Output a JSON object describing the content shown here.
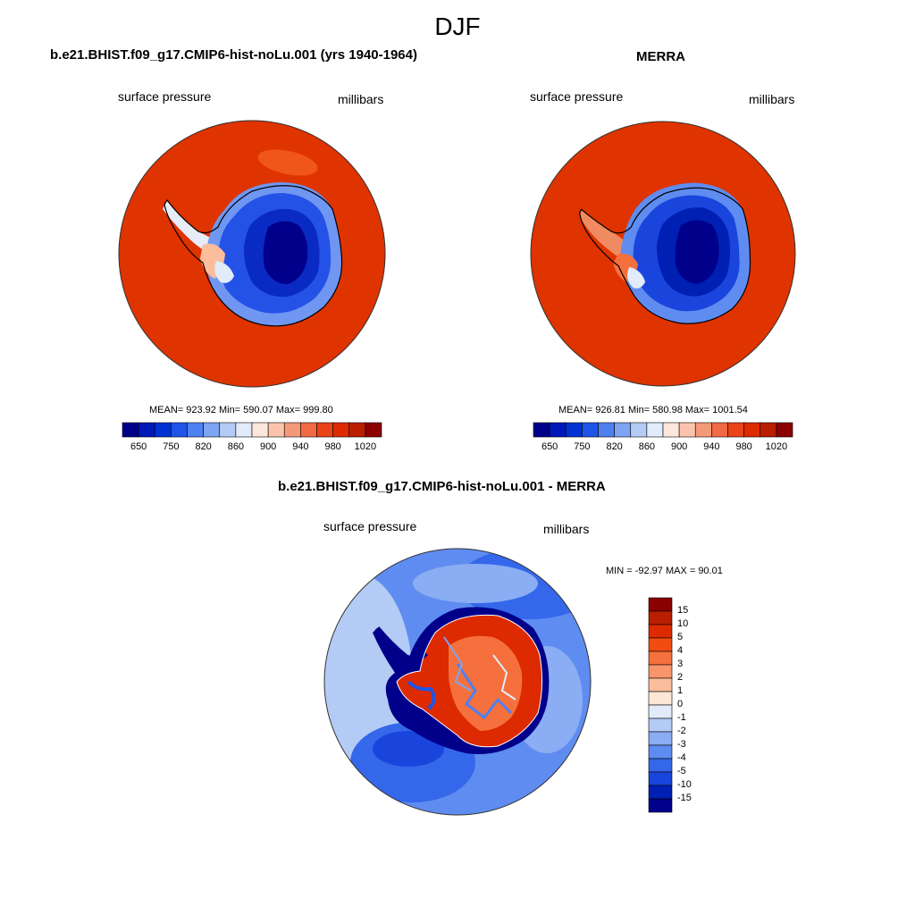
{
  "title": "DJF",
  "panels": {
    "model": {
      "title": "b.e21.BHIST.f09_g17.CMIP6-hist-noLu.001 (yrs 1940-1964)",
      "left_label": "surface pressure",
      "right_label": "millibars",
      "stats": "MEAN= 923.92  Min= 590.07  Max= 999.80"
    },
    "obs": {
      "title": "MERRA",
      "left_label": "surface pressure",
      "right_label": "millibars",
      "stats": "MEAN= 926.81  Min= 580.98  Max= 1001.54"
    },
    "diff": {
      "title": "b.e21.BHIST.f09_g17.CMIP6-hist-noLu.001 - MERRA",
      "left_label": "surface pressure",
      "right_label": "millibars",
      "stats": "MIN = -92.97 MAX =  90.01"
    }
  },
  "colorbar_abs": {
    "labels": [
      "650",
      "750",
      "820",
      "860",
      "900",
      "940",
      "980",
      "1020"
    ],
    "colors": [
      "#00008b",
      "#0018b8",
      "#0032d2",
      "#1e55e8",
      "#4f80f0",
      "#7ea4f2",
      "#b3cbf5",
      "#e1ebfa",
      "#fde6dc",
      "#fac4ac",
      "#f59a78",
      "#f06a45",
      "#ea4318",
      "#dd2a00",
      "#b91e00",
      "#8b0000"
    ]
  },
  "colorbar_diff": {
    "labels": [
      "15",
      "10",
      "5",
      "4",
      "3",
      "2",
      "1",
      "0",
      "-1",
      "-2",
      "-3",
      "-4",
      "-5",
      "-10",
      "-15"
    ],
    "colors": [
      "#8b0000",
      "#b91e00",
      "#dd2a00",
      "#f24c12",
      "#f5703c",
      "#f8956a",
      "#fbbd9c",
      "#fde6d6",
      "#e1ebfa",
      "#b3cbf5",
      "#8aadf3",
      "#5f8cf0",
      "#3467ea",
      "#1a45dd",
      "#0020b4",
      "#00008b"
    ]
  }
}
